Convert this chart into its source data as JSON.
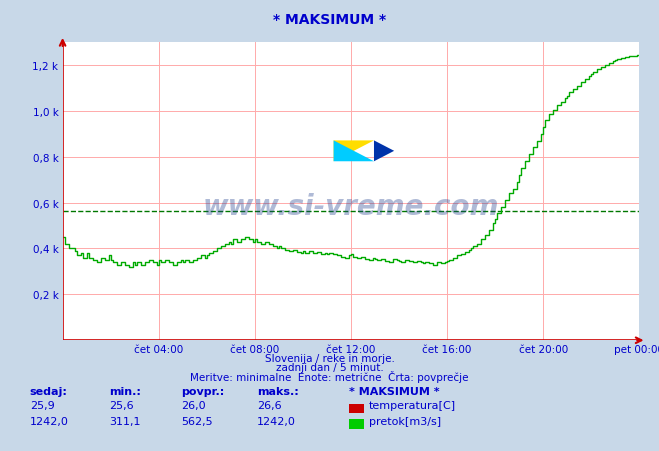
{
  "title": "* MAKSIMUM *",
  "bg_color": "#c8d8e8",
  "plot_bg_color": "#ffffff",
  "grid_color": "#ffaaaa",
  "line_color": "#00aa00",
  "avg_line_color": "#007700",
  "avg_value": 562.5,
  "xlabel_color": "#0000cc",
  "title_color": "#0000cc",
  "ylabel_ticks": [
    0,
    200,
    400,
    600,
    800,
    1000,
    1200
  ],
  "ylabel_labels": [
    "",
    "0,2 k",
    "0,4 k",
    "0,6 k",
    "0,8 k",
    "1,0 k",
    "1,2 k"
  ],
  "xtick_labels": [
    "čet 04:00",
    "čet 08:00",
    "čet 12:00",
    "čet 16:00",
    "čet 20:00",
    "pet 00:00"
  ],
  "xtick_positions": [
    4,
    8,
    12,
    16,
    20,
    24
  ],
  "xlim": [
    0,
    24
  ],
  "ylim": [
    0,
    1300
  ],
  "subtitle1": "Slovenija / reke in morje.",
  "subtitle2": "zadnji dan / 5 minut.",
  "subtitle3": "Meritve: minimalne  Enote: metrične  Črta: povprečje",
  "legend_title": "* MAKSIMUM *",
  "flow_data": [
    [
      0.0,
      450
    ],
    [
      0.083,
      450
    ],
    [
      0.083,
      420
    ],
    [
      0.25,
      420
    ],
    [
      0.25,
      400
    ],
    [
      0.5,
      400
    ],
    [
      0.5,
      390
    ],
    [
      0.583,
      390
    ],
    [
      0.583,
      370
    ],
    [
      0.75,
      370
    ],
    [
      0.75,
      380
    ],
    [
      0.833,
      380
    ],
    [
      0.833,
      360
    ],
    [
      1.0,
      360
    ],
    [
      1.0,
      380
    ],
    [
      1.083,
      380
    ],
    [
      1.083,
      360
    ],
    [
      1.25,
      360
    ],
    [
      1.25,
      350
    ],
    [
      1.417,
      350
    ],
    [
      1.417,
      340
    ],
    [
      1.583,
      340
    ],
    [
      1.583,
      360
    ],
    [
      1.75,
      360
    ],
    [
      1.75,
      350
    ],
    [
      1.917,
      350
    ],
    [
      1.917,
      370
    ],
    [
      2.0,
      370
    ],
    [
      2.0,
      350
    ],
    [
      2.083,
      350
    ],
    [
      2.083,
      340
    ],
    [
      2.25,
      340
    ],
    [
      2.25,
      330
    ],
    [
      2.417,
      330
    ],
    [
      2.417,
      340
    ],
    [
      2.583,
      340
    ],
    [
      2.583,
      330
    ],
    [
      2.75,
      330
    ],
    [
      2.75,
      320
    ],
    [
      2.917,
      320
    ],
    [
      2.917,
      340
    ],
    [
      3.0,
      340
    ],
    [
      3.0,
      330
    ],
    [
      3.083,
      330
    ],
    [
      3.083,
      340
    ],
    [
      3.25,
      340
    ],
    [
      3.25,
      330
    ],
    [
      3.417,
      330
    ],
    [
      3.417,
      340
    ],
    [
      3.583,
      340
    ],
    [
      3.583,
      350
    ],
    [
      3.75,
      350
    ],
    [
      3.75,
      340
    ],
    [
      3.917,
      340
    ],
    [
      3.917,
      330
    ],
    [
      4.0,
      330
    ],
    [
      4.0,
      350
    ],
    [
      4.083,
      350
    ],
    [
      4.083,
      340
    ],
    [
      4.25,
      340
    ],
    [
      4.25,
      350
    ],
    [
      4.417,
      350
    ],
    [
      4.417,
      340
    ],
    [
      4.583,
      340
    ],
    [
      4.583,
      330
    ],
    [
      4.75,
      330
    ],
    [
      4.75,
      340
    ],
    [
      4.917,
      340
    ],
    [
      4.917,
      350
    ],
    [
      5.0,
      350
    ],
    [
      5.0,
      340
    ],
    [
      5.083,
      340
    ],
    [
      5.083,
      350
    ],
    [
      5.25,
      350
    ],
    [
      5.25,
      340
    ],
    [
      5.417,
      340
    ],
    [
      5.417,
      350
    ],
    [
      5.583,
      350
    ],
    [
      5.583,
      360
    ],
    [
      5.75,
      360
    ],
    [
      5.75,
      370
    ],
    [
      5.917,
      370
    ],
    [
      5.917,
      360
    ],
    [
      6.0,
      360
    ],
    [
      6.0,
      370
    ],
    [
      6.083,
      370
    ],
    [
      6.083,
      380
    ],
    [
      6.25,
      380
    ],
    [
      6.25,
      390
    ],
    [
      6.417,
      390
    ],
    [
      6.417,
      400
    ],
    [
      6.583,
      400
    ],
    [
      6.583,
      410
    ],
    [
      6.75,
      410
    ],
    [
      6.75,
      420
    ],
    [
      6.917,
      420
    ],
    [
      6.917,
      430
    ],
    [
      7.0,
      430
    ],
    [
      7.0,
      420
    ],
    [
      7.083,
      420
    ],
    [
      7.083,
      440
    ],
    [
      7.25,
      440
    ],
    [
      7.25,
      430
    ],
    [
      7.417,
      430
    ],
    [
      7.417,
      440
    ],
    [
      7.583,
      440
    ],
    [
      7.583,
      450
    ],
    [
      7.75,
      450
    ],
    [
      7.75,
      440
    ],
    [
      7.917,
      440
    ],
    [
      7.917,
      430
    ],
    [
      8.0,
      430
    ],
    [
      8.0,
      440
    ],
    [
      8.083,
      440
    ],
    [
      8.083,
      430
    ],
    [
      8.25,
      430
    ],
    [
      8.25,
      420
    ],
    [
      8.417,
      420
    ],
    [
      8.417,
      430
    ],
    [
      8.583,
      430
    ],
    [
      8.583,
      420
    ],
    [
      8.75,
      420
    ],
    [
      8.75,
      410
    ],
    [
      8.917,
      410
    ],
    [
      8.917,
      400
    ],
    [
      9.0,
      400
    ],
    [
      9.0,
      410
    ],
    [
      9.083,
      410
    ],
    [
      9.083,
      400
    ],
    [
      9.25,
      400
    ],
    [
      9.25,
      395
    ],
    [
      9.417,
      395
    ],
    [
      9.417,
      390
    ],
    [
      9.583,
      390
    ],
    [
      9.583,
      395
    ],
    [
      9.75,
      395
    ],
    [
      9.75,
      385
    ],
    [
      9.917,
      385
    ],
    [
      9.917,
      380
    ],
    [
      10.0,
      380
    ],
    [
      10.0,
      390
    ],
    [
      10.083,
      390
    ],
    [
      10.083,
      380
    ],
    [
      10.25,
      380
    ],
    [
      10.25,
      390
    ],
    [
      10.417,
      390
    ],
    [
      10.417,
      380
    ],
    [
      10.583,
      380
    ],
    [
      10.583,
      385
    ],
    [
      10.75,
      385
    ],
    [
      10.75,
      375
    ],
    [
      10.917,
      375
    ],
    [
      10.917,
      380
    ],
    [
      11.0,
      380
    ],
    [
      11.0,
      375
    ],
    [
      11.083,
      375
    ],
    [
      11.083,
      380
    ],
    [
      11.25,
      380
    ],
    [
      11.25,
      375
    ],
    [
      11.417,
      375
    ],
    [
      11.417,
      370
    ],
    [
      11.583,
      370
    ],
    [
      11.583,
      365
    ],
    [
      11.75,
      365
    ],
    [
      11.75,
      360
    ],
    [
      11.917,
      360
    ],
    [
      11.917,
      370
    ],
    [
      12.0,
      370
    ],
    [
      12.0,
      375
    ],
    [
      12.083,
      375
    ],
    [
      12.083,
      365
    ],
    [
      12.25,
      365
    ],
    [
      12.25,
      360
    ],
    [
      12.417,
      360
    ],
    [
      12.417,
      365
    ],
    [
      12.583,
      365
    ],
    [
      12.583,
      355
    ],
    [
      12.75,
      355
    ],
    [
      12.75,
      350
    ],
    [
      12.917,
      350
    ],
    [
      12.917,
      360
    ],
    [
      13.0,
      360
    ],
    [
      13.0,
      355
    ],
    [
      13.083,
      355
    ],
    [
      13.083,
      350
    ],
    [
      13.25,
      350
    ],
    [
      13.25,
      355
    ],
    [
      13.417,
      355
    ],
    [
      13.417,
      345
    ],
    [
      13.583,
      345
    ],
    [
      13.583,
      340
    ],
    [
      13.75,
      340
    ],
    [
      13.75,
      355
    ],
    [
      13.917,
      355
    ],
    [
      13.917,
      350
    ],
    [
      14.0,
      350
    ],
    [
      14.0,
      345
    ],
    [
      14.083,
      345
    ],
    [
      14.083,
      340
    ],
    [
      14.25,
      340
    ],
    [
      14.25,
      350
    ],
    [
      14.417,
      350
    ],
    [
      14.417,
      345
    ],
    [
      14.583,
      345
    ],
    [
      14.583,
      340
    ],
    [
      14.75,
      340
    ],
    [
      14.75,
      345
    ],
    [
      14.917,
      345
    ],
    [
      14.917,
      340
    ],
    [
      15.0,
      340
    ],
    [
      15.0,
      335
    ],
    [
      15.083,
      335
    ],
    [
      15.083,
      340
    ],
    [
      15.25,
      340
    ],
    [
      15.25,
      335
    ],
    [
      15.417,
      335
    ],
    [
      15.417,
      330
    ],
    [
      15.583,
      330
    ],
    [
      15.583,
      340
    ],
    [
      15.75,
      340
    ],
    [
      15.75,
      335
    ],
    [
      15.917,
      335
    ],
    [
      15.917,
      340
    ],
    [
      16.0,
      340
    ],
    [
      16.0,
      345
    ],
    [
      16.083,
      345
    ],
    [
      16.083,
      350
    ],
    [
      16.25,
      350
    ],
    [
      16.25,
      360
    ],
    [
      16.417,
      360
    ],
    [
      16.417,
      370
    ],
    [
      16.583,
      370
    ],
    [
      16.583,
      375
    ],
    [
      16.75,
      375
    ],
    [
      16.75,
      385
    ],
    [
      16.917,
      385
    ],
    [
      16.917,
      395
    ],
    [
      17.0,
      395
    ],
    [
      17.0,
      400
    ],
    [
      17.083,
      400
    ],
    [
      17.083,
      410
    ],
    [
      17.25,
      410
    ],
    [
      17.25,
      420
    ],
    [
      17.417,
      420
    ],
    [
      17.417,
      440
    ],
    [
      17.583,
      440
    ],
    [
      17.583,
      460
    ],
    [
      17.75,
      460
    ],
    [
      17.75,
      480
    ],
    [
      17.917,
      480
    ],
    [
      17.917,
      510
    ],
    [
      18.0,
      510
    ],
    [
      18.0,
      530
    ],
    [
      18.083,
      530
    ],
    [
      18.083,
      555
    ],
    [
      18.25,
      555
    ],
    [
      18.25,
      580
    ],
    [
      18.417,
      580
    ],
    [
      18.417,
      610
    ],
    [
      18.583,
      610
    ],
    [
      18.583,
      640
    ],
    [
      18.75,
      640
    ],
    [
      18.75,
      660
    ],
    [
      18.917,
      660
    ],
    [
      18.917,
      690
    ],
    [
      19.0,
      690
    ],
    [
      19.0,
      720
    ],
    [
      19.083,
      720
    ],
    [
      19.083,
      750
    ],
    [
      19.25,
      750
    ],
    [
      19.25,
      780
    ],
    [
      19.417,
      780
    ],
    [
      19.417,
      810
    ],
    [
      19.583,
      810
    ],
    [
      19.583,
      840
    ],
    [
      19.75,
      840
    ],
    [
      19.75,
      870
    ],
    [
      19.917,
      870
    ],
    [
      19.917,
      900
    ],
    [
      20.0,
      900
    ],
    [
      20.0,
      930
    ],
    [
      20.083,
      930
    ],
    [
      20.083,
      960
    ],
    [
      20.25,
      960
    ],
    [
      20.25,
      985
    ],
    [
      20.417,
      985
    ],
    [
      20.417,
      1005
    ],
    [
      20.583,
      1005
    ],
    [
      20.583,
      1025
    ],
    [
      20.75,
      1025
    ],
    [
      20.75,
      1040
    ],
    [
      20.917,
      1040
    ],
    [
      20.917,
      1055
    ],
    [
      21.0,
      1055
    ],
    [
      21.0,
      1065
    ],
    [
      21.083,
      1065
    ],
    [
      21.083,
      1080
    ],
    [
      21.25,
      1080
    ],
    [
      21.25,
      1095
    ],
    [
      21.417,
      1095
    ],
    [
      21.417,
      1110
    ],
    [
      21.583,
      1110
    ],
    [
      21.583,
      1125
    ],
    [
      21.75,
      1125
    ],
    [
      21.75,
      1140
    ],
    [
      21.917,
      1140
    ],
    [
      21.917,
      1150
    ],
    [
      22.0,
      1150
    ],
    [
      22.0,
      1160
    ],
    [
      22.083,
      1160
    ],
    [
      22.083,
      1170
    ],
    [
      22.25,
      1170
    ],
    [
      22.25,
      1180
    ],
    [
      22.417,
      1180
    ],
    [
      22.417,
      1190
    ],
    [
      22.583,
      1190
    ],
    [
      22.583,
      1200
    ],
    [
      22.75,
      1200
    ],
    [
      22.75,
      1210
    ],
    [
      22.917,
      1210
    ],
    [
      22.917,
      1215
    ],
    [
      23.0,
      1215
    ],
    [
      23.0,
      1220
    ],
    [
      23.083,
      1220
    ],
    [
      23.083,
      1225
    ],
    [
      23.25,
      1225
    ],
    [
      23.25,
      1230
    ],
    [
      23.417,
      1230
    ],
    [
      23.417,
      1235
    ],
    [
      23.583,
      1235
    ],
    [
      23.583,
      1238
    ],
    [
      23.75,
      1238
    ],
    [
      23.75,
      1240
    ],
    [
      23.917,
      1240
    ],
    [
      23.917,
      1242
    ],
    [
      24.0,
      1242
    ]
  ]
}
